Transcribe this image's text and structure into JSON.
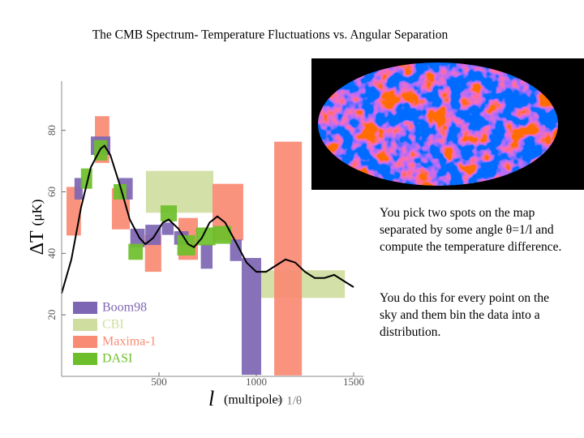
{
  "chart_data": {
    "type": "error-box",
    "title": "The CMB Spectrum- Temperature Fluctuations vs. Angular Separation",
    "y_label": "ΔT",
    "y_unit": "(μK)",
    "x_label": "l",
    "x_unit": "(multipole)",
    "x_note": "= 1/θ",
    "xlim": [
      0,
      1550
    ],
    "ylim": [
      0,
      96
    ],
    "xticks": [
      500,
      1000,
      1500
    ],
    "yticks": [
      20,
      40,
      60,
      80
    ],
    "series": [
      {
        "name": "Boom98",
        "color": "#7d66b3",
        "x": [
          87,
          200,
          330,
          390,
          470,
          545,
          615,
          745,
          895,
          975
        ],
        "xerr": [
          21,
          50,
          35,
          37,
          40,
          30,
          37,
          30,
          30,
          50
        ],
        "values": [
          61,
          75,
          61,
          45,
          46,
          48,
          45,
          39,
          41,
          19.5
        ],
        "yerr": [
          3.5,
          3,
          3.5,
          3,
          3.3,
          2,
          2.2,
          4,
          3.5,
          19
        ]
      },
      {
        "name": "CBI",
        "color": "#cfdd9f",
        "x": [
          606,
          1240
        ],
        "xerr": [
          173,
          215
        ],
        "values": [
          60,
          30
        ],
        "yerr": [
          6.8,
          4.5
        ]
      },
      {
        "name": "Maxima-1",
        "color": "#f98a73",
        "x": [
          62,
          208,
          304,
          470,
          650,
          854,
          1163
        ],
        "xerr": [
          37,
          37,
          46,
          42,
          50,
          79,
          71
        ],
        "values": [
          53.7,
          77,
          54.5,
          40,
          44.7,
          53.4,
          38.3
        ],
        "yerr": [
          7.9,
          7.6,
          6.7,
          6,
          6.8,
          9.2,
          38
        ]
      },
      {
        "name": "DASI",
        "color": "#6cbf2a",
        "x": [
          128,
          200,
          300,
          380,
          550,
          640,
          740,
          825
        ],
        "xerr": [
          29,
          33,
          33,
          37,
          42,
          46,
          50,
          46
        ],
        "values": [
          64.3,
          73.5,
          60,
          40.5,
          53,
          42.6,
          45.5,
          46
        ],
        "yerr": [
          3.3,
          3.3,
          2.5,
          2.6,
          2.6,
          3.3,
          2.9,
          2.9
        ]
      }
    ],
    "theory": {
      "color": "#000000",
      "x": [
        0,
        50,
        100,
        150,
        200,
        220,
        250,
        300,
        350,
        400,
        430,
        470,
        520,
        550,
        600,
        650,
        680,
        720,
        760,
        800,
        840,
        900,
        950,
        1000,
        1050,
        1100,
        1150,
        1200,
        1250,
        1300,
        1350,
        1400,
        1450,
        1500
      ],
      "values": [
        27,
        38,
        55,
        68,
        74,
        75,
        72,
        62,
        51,
        45,
        43,
        45,
        50,
        51,
        48,
        43,
        42,
        45,
        50,
        52,
        50,
        43,
        37,
        34,
        34,
        36,
        38,
        37,
        34,
        32,
        32,
        33,
        31,
        29
      ]
    }
  },
  "notes": [
    "You pick two spots on the map separated by some angle θ=1/l and compute the temperature difference.",
    "You do this for every point on the sky and them bin the data into a distribution."
  ]
}
